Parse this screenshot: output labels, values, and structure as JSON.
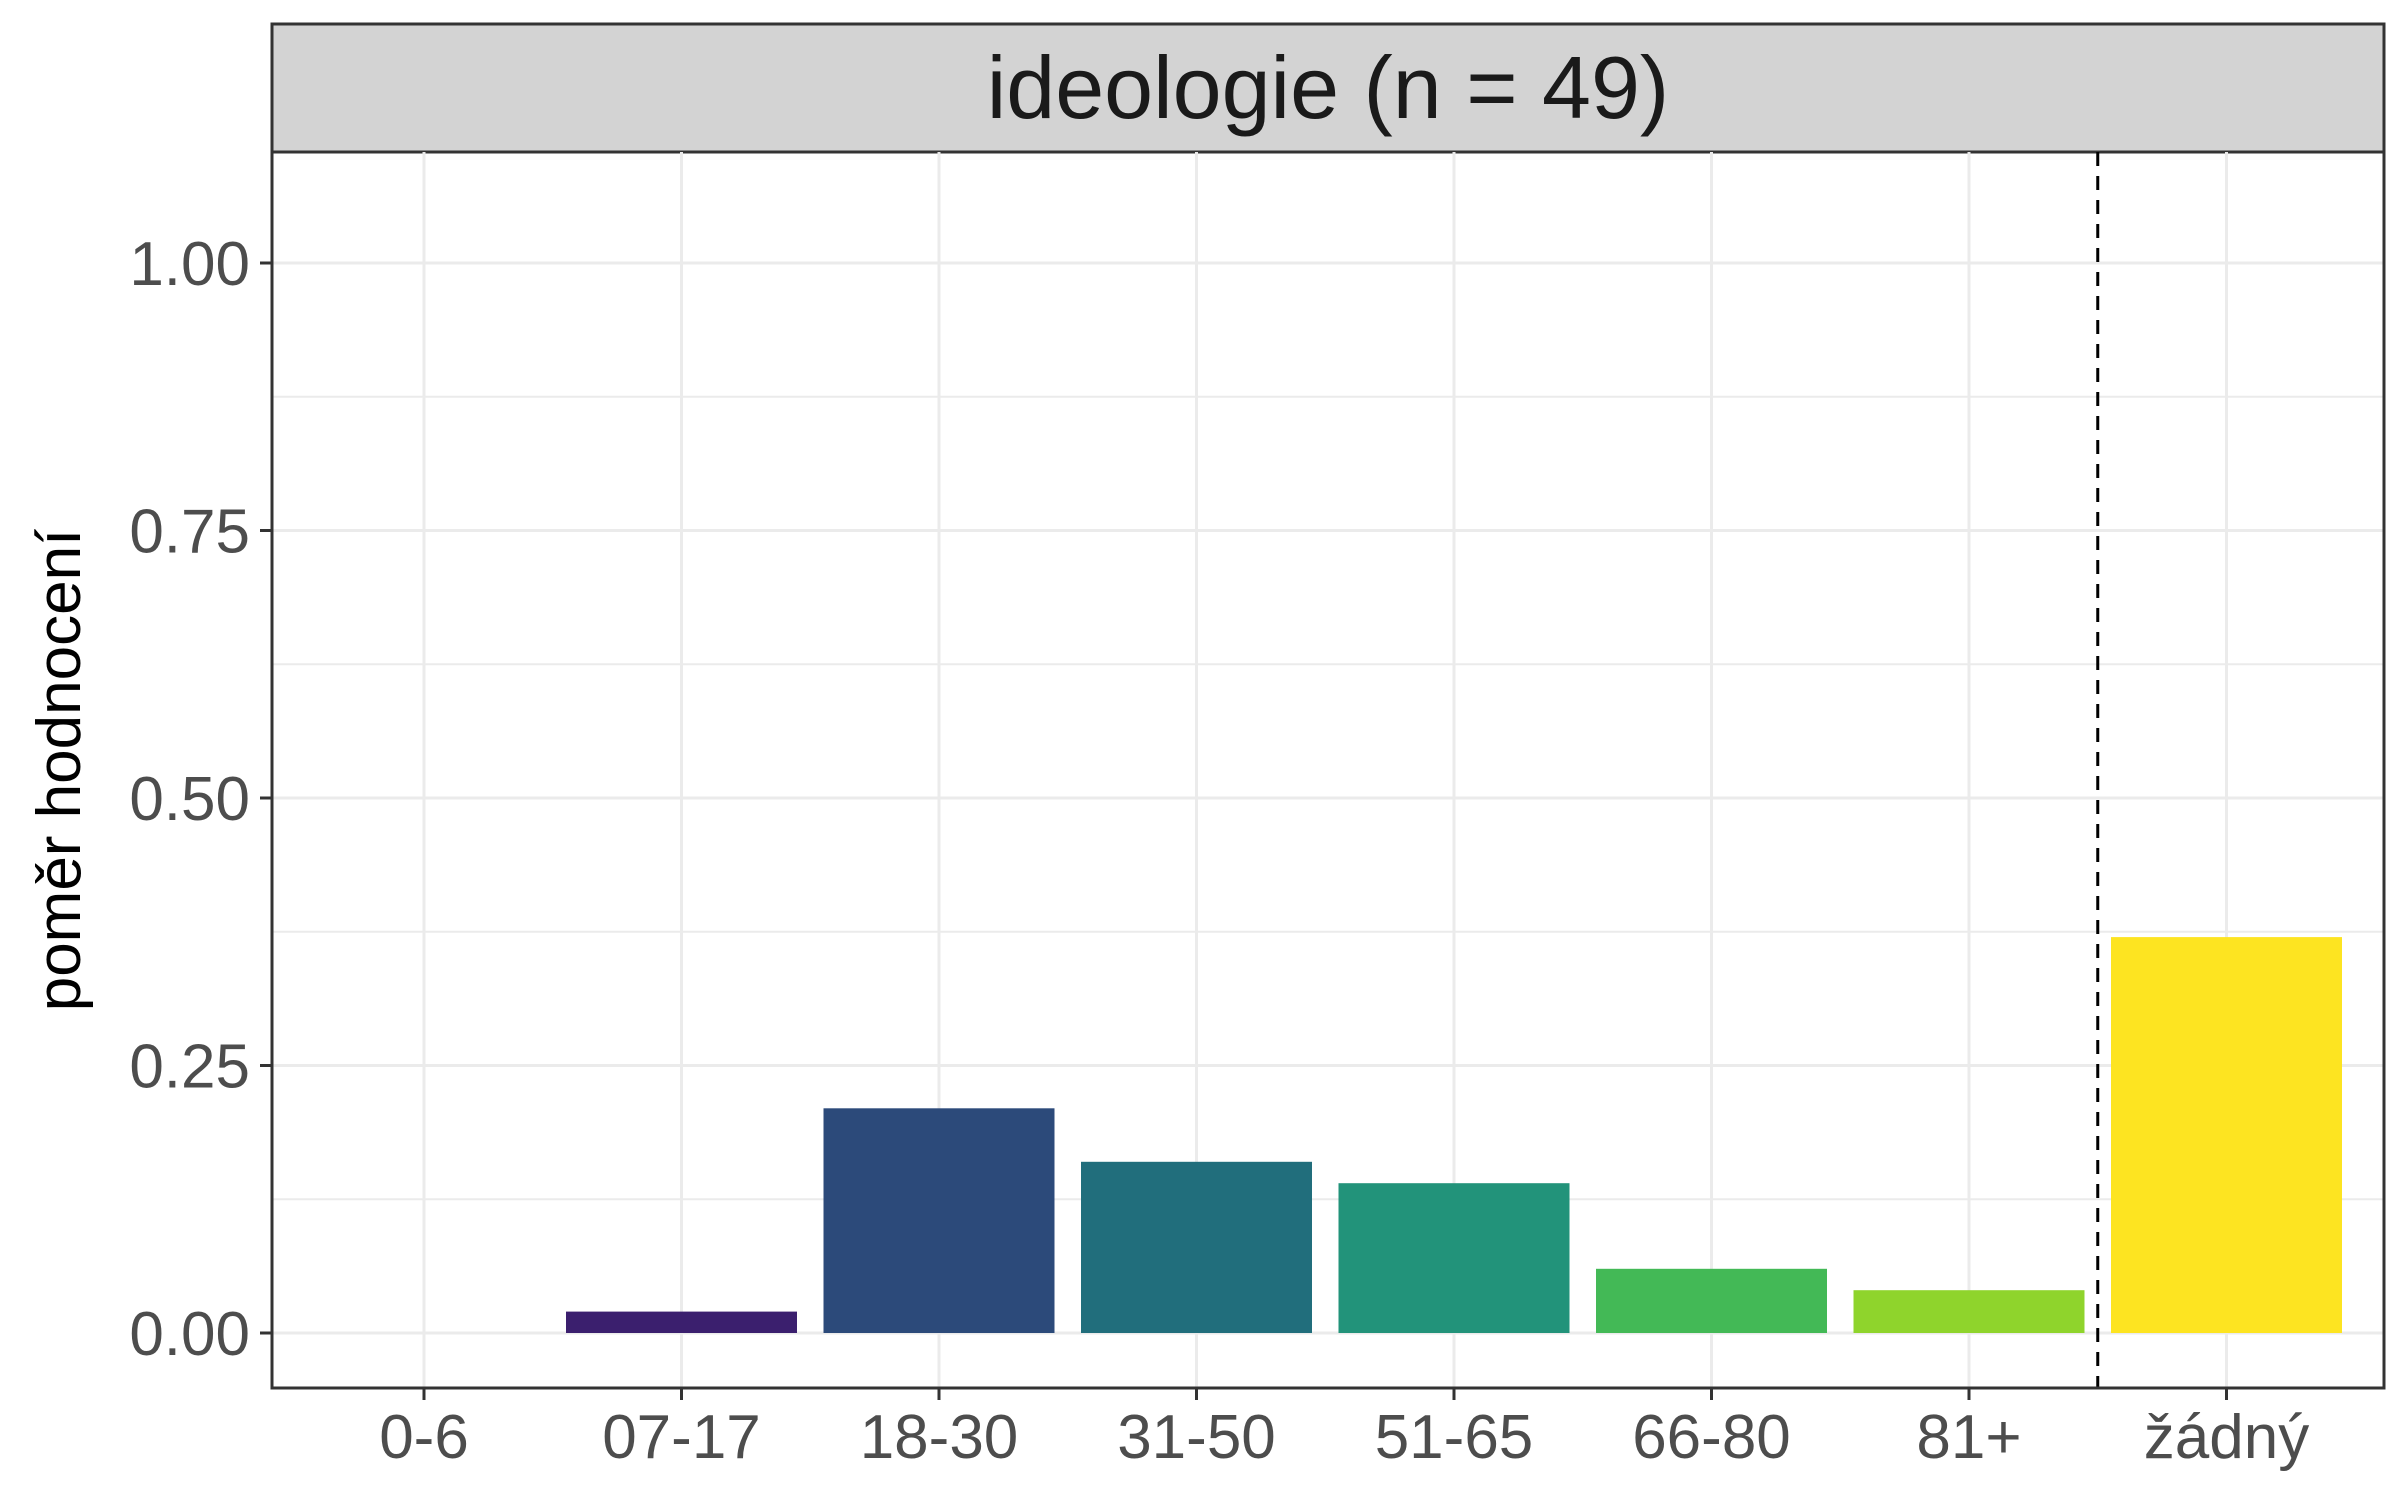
{
  "chart_data": {
    "type": "bar",
    "facet_title": "ideologie (n = 49)",
    "ylabel": "poměr hodnocení",
    "xlabel": "",
    "categories": [
      "0-6",
      "07-17",
      "18-30",
      "31-50",
      "51-65",
      "66-80",
      "81+",
      "žádný"
    ],
    "values": [
      0.0,
      0.02,
      0.21,
      0.16,
      0.14,
      0.06,
      0.04,
      0.37
    ],
    "colors": [
      "#440154",
      "#3b1f6e",
      "#2c4a7a",
      "#216e7c",
      "#22937a",
      "#43b956",
      "#8fd42c",
      "#fde421"
    ],
    "ylim": [
      -0.05,
      1.1
    ],
    "yticks": [
      0.0,
      0.25,
      0.5,
      0.75,
      1.0
    ],
    "ytick_labels": [
      "0.00",
      "0.25",
      "0.50",
      "0.75",
      "1.00"
    ],
    "separator_line": "dashed vertical line between 81+ and žádný",
    "grid": true,
    "legend": "none",
    "theme": {
      "strip_fill": "#d3d3d3",
      "grid_color": "#ebebeb",
      "border_color": "#333333"
    }
  }
}
